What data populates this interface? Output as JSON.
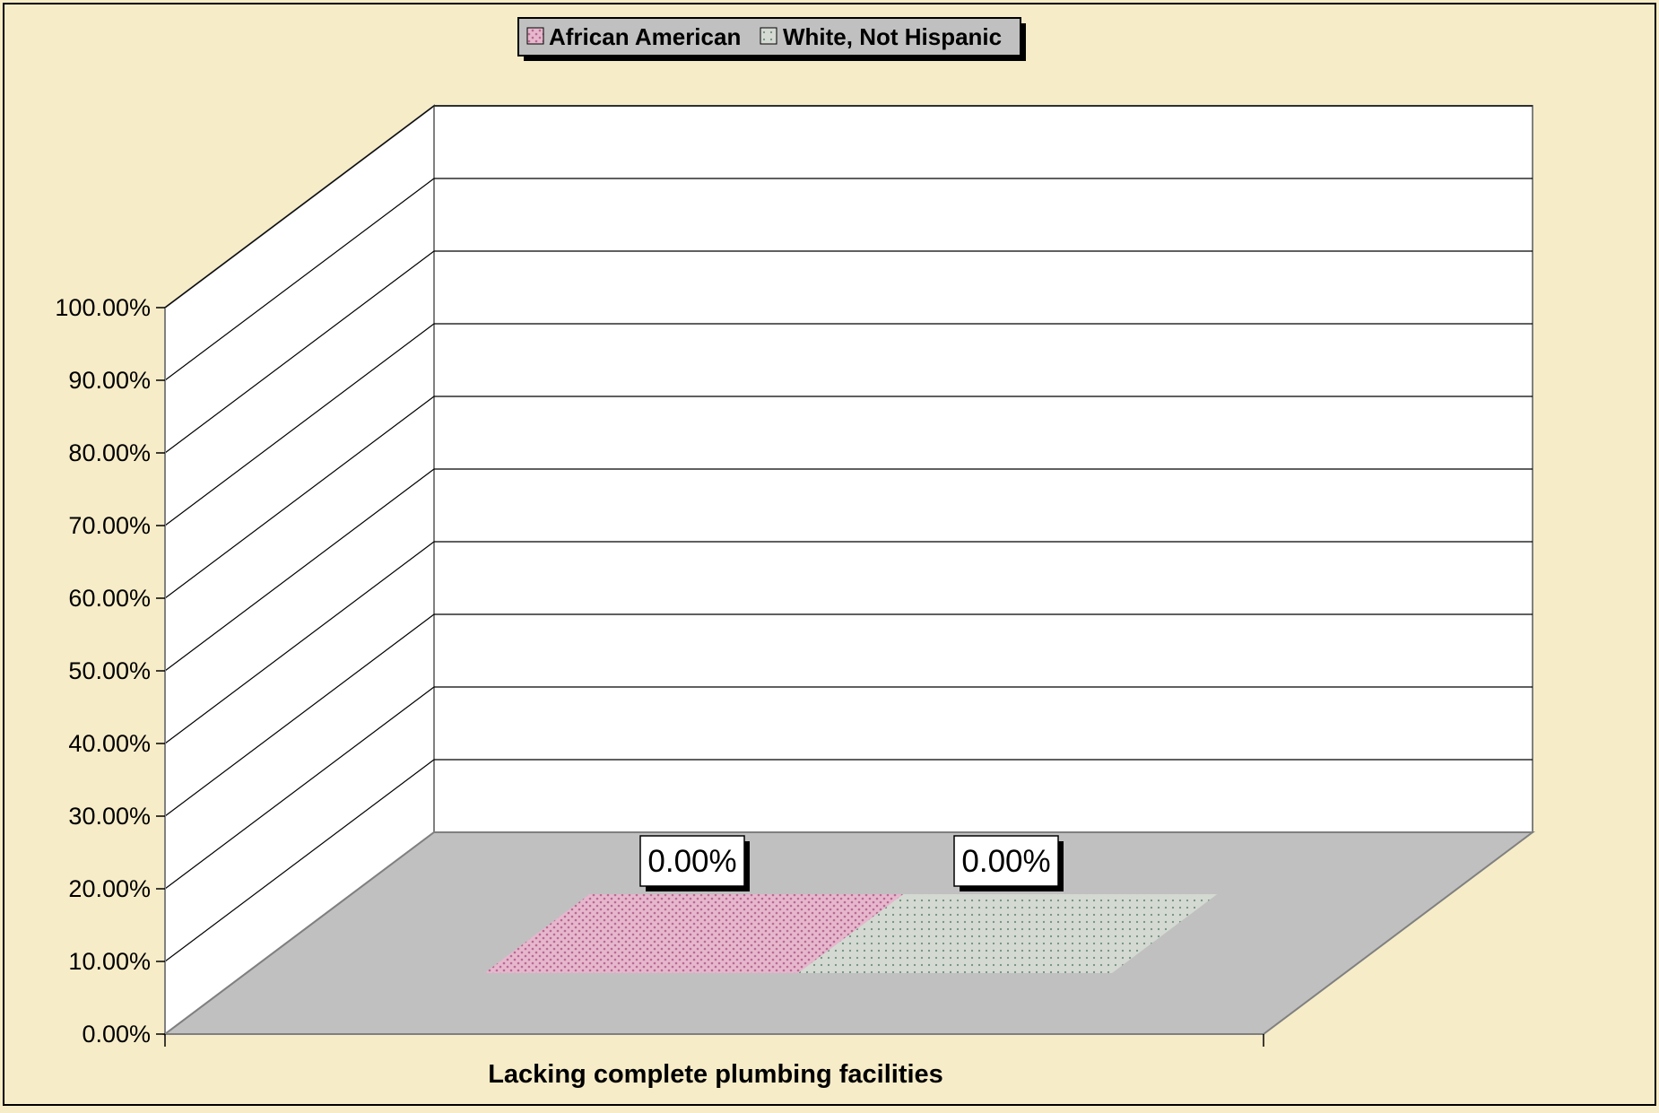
{
  "chart_data": {
    "type": "bar",
    "title": "",
    "xlabel": "",
    "ylabel": "",
    "categories": [
      "Lacking complete plumbing facilities"
    ],
    "series": [
      {
        "name": "African American",
        "values": [
          0.0
        ],
        "data_label": "0.00%"
      },
      {
        "name": "White, Not Hispanic",
        "values": [
          0.0
        ],
        "data_label": "0.00%"
      }
    ],
    "ylim": [
      0,
      100
    ],
    "yticks": [
      "0.00%",
      "10.00%",
      "20.00%",
      "30.00%",
      "40.00%",
      "50.00%",
      "60.00%",
      "70.00%",
      "80.00%",
      "90.00%",
      "100.00%"
    ],
    "grid": true,
    "legend_position": "top",
    "three_d": true
  },
  "colors": {
    "background": "#f6ecc8",
    "floor": "#c0c0c0",
    "wall": "#ffffff",
    "african_american": "#d99ab8",
    "white_not_hispanic": "#9db5a8",
    "legend_bg": "#c0c0c0"
  }
}
